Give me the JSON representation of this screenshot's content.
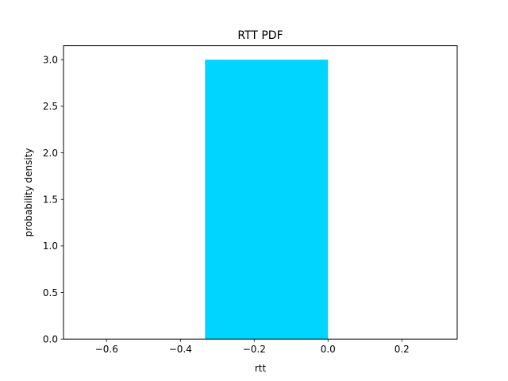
{
  "chart_data": {
    "type": "bar",
    "title": "RTT PDF",
    "xlabel": "rtt",
    "ylabel": "probability density",
    "xlim": [
      -0.7167,
      0.35
    ],
    "ylim": [
      0,
      3.15
    ],
    "xticks": [
      -0.6,
      -0.4,
      -0.2,
      0.0,
      0.2
    ],
    "xtick_labels": [
      "−0.6",
      "−0.4",
      "−0.2",
      "0.0",
      "0.2"
    ],
    "yticks": [
      0.0,
      0.5,
      1.0,
      1.5,
      2.0,
      2.5,
      3.0
    ],
    "ytick_labels": [
      "0.0",
      "0.5",
      "1.0",
      "1.5",
      "2.0",
      "2.5",
      "3.0"
    ],
    "bars": [
      {
        "x_start": -0.3333,
        "x_end": 0.0,
        "value": 3.0
      }
    ],
    "bar_color": "#00d5ff",
    "grid": false,
    "legend": "none"
  }
}
